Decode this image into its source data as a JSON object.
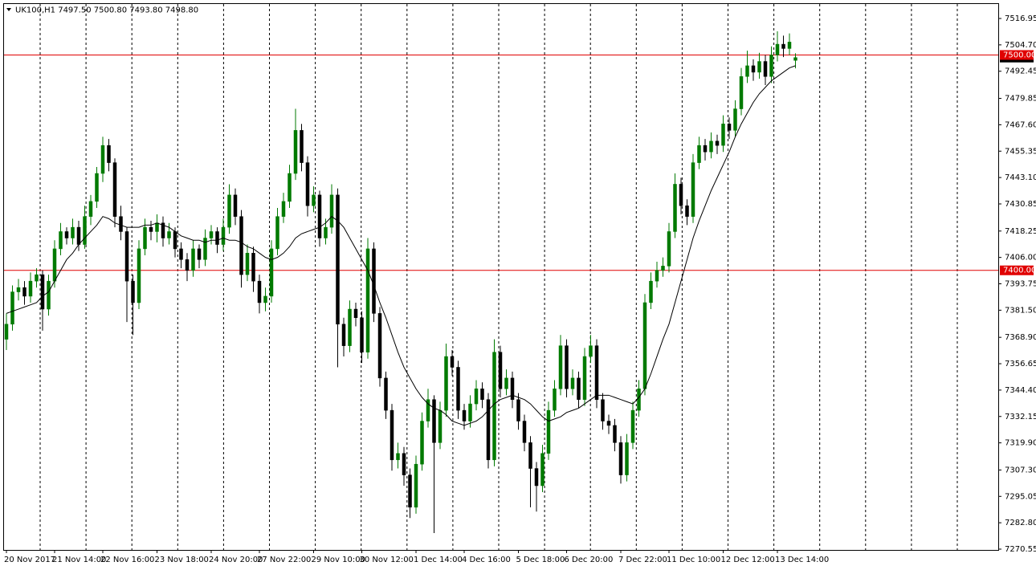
{
  "chart_data": {
    "type": "candlestick",
    "title": "UK100,H1  7497.50 7500.80 7493.80 7498.80",
    "categories": [
      "20 Nov 2017",
      null,
      null,
      null,
      null,
      null,
      null,
      null,
      "21 Nov 14:00",
      null,
      null,
      null,
      null,
      null,
      null,
      null,
      "22 Nov 16:00",
      null,
      null,
      null,
      null,
      null,
      null,
      null,
      null,
      "23 Nov 18:00",
      null,
      null,
      null,
      null,
      null,
      null,
      null,
      null,
      "24 Nov 20:00",
      null,
      null,
      null,
      null,
      null,
      null,
      null,
      "27 Nov 22:00",
      null,
      null,
      null,
      null,
      null,
      null,
      null,
      null,
      "29 Nov 10:00",
      null,
      null,
      null,
      null,
      null,
      null,
      null,
      "30 Nov 12:00",
      null,
      null,
      null,
      null,
      null,
      null,
      null,
      null,
      "1 Dec 14:00",
      null,
      null,
      null,
      null,
      null,
      null,
      null,
      "4 Dec 16:00",
      null,
      null,
      null,
      null,
      null,
      null,
      null,
      null,
      "5 Dec 18:00",
      null,
      null,
      null,
      null,
      null,
      null,
      null,
      "6 Dec 20:00",
      null,
      null,
      null,
      null,
      null,
      null,
      null,
      null,
      "7 Dec 22:00",
      null,
      null,
      null,
      null,
      null,
      null,
      null,
      "11 Dec 10:00",
      null,
      null,
      null,
      null,
      null,
      null,
      null,
      null,
      "12 Dec 12:00",
      null,
      null,
      null,
      null,
      null,
      null,
      null,
      null,
      "13 Dec 14:00",
      null,
      null,
      null
    ],
    "ohlc": [
      [
        7368,
        7380,
        7363,
        7375
      ],
      [
        7375,
        7393,
        7372,
        7390
      ],
      [
        7390,
        7396,
        7386,
        7392
      ],
      [
        7392,
        7395,
        7384,
        7388
      ],
      [
        7388,
        7399,
        7385,
        7395
      ],
      [
        7395,
        7401,
        7392,
        7398
      ],
      [
        7398,
        7400,
        7372,
        7382
      ],
      [
        7382,
        7398,
        7379,
        7395
      ],
      [
        7395,
        7414,
        7392,
        7410
      ],
      [
        7410,
        7422,
        7407,
        7418
      ],
      [
        7418,
        7420,
        7412,
        7415
      ],
      [
        7415,
        7424,
        7412,
        7420
      ],
      [
        7420,
        7423,
        7409,
        7412
      ],
      [
        7412,
        7430,
        7410,
        7425
      ],
      [
        7425,
        7435,
        7421,
        7432
      ],
      [
        7432,
        7448,
        7429,
        7445
      ],
      [
        7445,
        7462,
        7441,
        7458
      ],
      [
        7458,
        7461,
        7446,
        7450
      ],
      [
        7450,
        7452,
        7420,
        7425
      ],
      [
        7425,
        7430,
        7414,
        7418
      ],
      [
        7418,
        7420,
        7376,
        7395
      ],
      [
        7395,
        7398,
        7370,
        7385
      ],
      [
        7385,
        7414,
        7382,
        7410
      ],
      [
        7410,
        7424,
        7407,
        7420
      ],
      [
        7420,
        7423,
        7414,
        7418
      ],
      [
        7418,
        7426,
        7413,
        7422
      ],
      [
        7422,
        7425,
        7411,
        7415
      ],
      [
        7415,
        7422,
        7412,
        7418
      ],
      [
        7418,
        7420,
        7406,
        7410
      ],
      [
        7410,
        7413,
        7401,
        7405
      ],
      [
        7405,
        7408,
        7395,
        7400
      ],
      [
        7400,
        7414,
        7397,
        7410
      ],
      [
        7410,
        7412,
        7401,
        7405
      ],
      [
        7405,
        7419,
        7402,
        7415
      ],
      [
        7415,
        7421,
        7412,
        7418
      ],
      [
        7418,
        7420,
        7408,
        7412
      ],
      [
        7412,
        7424,
        7409,
        7420
      ],
      [
        7420,
        7440,
        7417,
        7435
      ],
      [
        7435,
        7438,
        7421,
        7425
      ],
      [
        7425,
        7428,
        7392,
        7398
      ],
      [
        7398,
        7412,
        7395,
        7408
      ],
      [
        7408,
        7411,
        7390,
        7395
      ],
      [
        7395,
        7398,
        7380,
        7385
      ],
      [
        7385,
        7392,
        7381,
        7388
      ],
      [
        7388,
        7414,
        7385,
        7410
      ],
      [
        7410,
        7429,
        7407,
        7425
      ],
      [
        7425,
        7436,
        7422,
        7432
      ],
      [
        7432,
        7449,
        7429,
        7445
      ],
      [
        7445,
        7475,
        7442,
        7465
      ],
      [
        7465,
        7468,
        7446,
        7450
      ],
      [
        7450,
        7453,
        7425,
        7430
      ],
      [
        7430,
        7439,
        7427,
        7435
      ],
      [
        7435,
        7437,
        7411,
        7415
      ],
      [
        7415,
        7424,
        7412,
        7420
      ],
      [
        7420,
        7440,
        7417,
        7435
      ],
      [
        7435,
        7438,
        7355,
        7375
      ],
      [
        7375,
        7378,
        7360,
        7365
      ],
      [
        7365,
        7386,
        7362,
        7382
      ],
      [
        7382,
        7385,
        7374,
        7378
      ],
      [
        7378,
        7381,
        7357,
        7362
      ],
      [
        7362,
        7415,
        7359,
        7410
      ],
      [
        7410,
        7413,
        7376,
        7380
      ],
      [
        7380,
        7383,
        7346,
        7350
      ],
      [
        7350,
        7353,
        7331,
        7335
      ],
      [
        7335,
        7338,
        7307,
        7312
      ],
      [
        7312,
        7320,
        7308,
        7315
      ],
      [
        7315,
        7318,
        7300,
        7305
      ],
      [
        7305,
        7308,
        7285,
        7290
      ],
      [
        7290,
        7314,
        7287,
        7310
      ],
      [
        7310,
        7334,
        7307,
        7330
      ],
      [
        7330,
        7345,
        7327,
        7340
      ],
      [
        7340,
        7342,
        7278,
        7320
      ],
      [
        7320,
        7339,
        7317,
        7335
      ],
      [
        7335,
        7366,
        7332,
        7360
      ],
      [
        7360,
        7363,
        7351,
        7355
      ],
      [
        7355,
        7358,
        7331,
        7335
      ],
      [
        7335,
        7338,
        7326,
        7330
      ],
      [
        7330,
        7342,
        7327,
        7338
      ],
      [
        7338,
        7349,
        7335,
        7345
      ],
      [
        7345,
        7348,
        7336,
        7340
      ],
      [
        7340,
        7343,
        7308,
        7312
      ],
      [
        7312,
        7368,
        7309,
        7362
      ],
      [
        7362,
        7365,
        7341,
        7345
      ],
      [
        7345,
        7354,
        7342,
        7350
      ],
      [
        7350,
        7353,
        7336,
        7340
      ],
      [
        7340,
        7343,
        7326,
        7330
      ],
      [
        7330,
        7333,
        7316,
        7320
      ],
      [
        7320,
        7323,
        7290,
        7308
      ],
      [
        7308,
        7311,
        7288,
        7300
      ],
      [
        7300,
        7319,
        7297,
        7315
      ],
      [
        7315,
        7339,
        7312,
        7335
      ],
      [
        7335,
        7349,
        7332,
        7345
      ],
      [
        7345,
        7370,
        7342,
        7365
      ],
      [
        7365,
        7368,
        7341,
        7345
      ],
      [
        7345,
        7354,
        7342,
        7350
      ],
      [
        7350,
        7353,
        7336,
        7340
      ],
      [
        7340,
        7364,
        7337,
        7360
      ],
      [
        7360,
        7370,
        7357,
        7365
      ],
      [
        7365,
        7368,
        7336,
        7340
      ],
      [
        7340,
        7343,
        7326,
        7330
      ],
      [
        7330,
        7333,
        7324,
        7328
      ],
      [
        7328,
        7331,
        7316,
        7320
      ],
      [
        7320,
        7323,
        7301,
        7305
      ],
      [
        7305,
        7324,
        7302,
        7320
      ],
      [
        7320,
        7339,
        7317,
        7335
      ],
      [
        7335,
        7349,
        7332,
        7345
      ],
      [
        7345,
        7389,
        7342,
        7385
      ],
      [
        7385,
        7399,
        7382,
        7395
      ],
      [
        7395,
        7404,
        7392,
        7400
      ],
      [
        7400,
        7406,
        7397,
        7402
      ],
      [
        7402,
        7422,
        7399,
        7418
      ],
      [
        7418,
        7445,
        7415,
        7440
      ],
      [
        7440,
        7443,
        7426,
        7430
      ],
      [
        7430,
        7433,
        7421,
        7425
      ],
      [
        7425,
        7454,
        7422,
        7450
      ],
      [
        7450,
        7462,
        7447,
        7458
      ],
      [
        7458,
        7461,
        7451,
        7455
      ],
      [
        7455,
        7464,
        7452,
        7460
      ],
      [
        7460,
        7463,
        7454,
        7458
      ],
      [
        7458,
        7472,
        7455,
        7468
      ],
      [
        7468,
        7471,
        7461,
        7465
      ],
      [
        7465,
        7479,
        7462,
        7475
      ],
      [
        7475,
        7494,
        7472,
        7490
      ],
      [
        7490,
        7502,
        7487,
        7495
      ],
      [
        7495,
        7498,
        7488,
        7492
      ],
      [
        7492,
        7501,
        7489,
        7497
      ],
      [
        7497,
        7500,
        7486,
        7490
      ],
      [
        7490,
        7504,
        7487,
        7500
      ],
      [
        7500,
        7511,
        7497,
        7505
      ],
      [
        7505,
        7509,
        7499,
        7503
      ],
      [
        7503,
        7510,
        7500,
        7506
      ],
      [
        7497.5,
        7500.8,
        7493.8,
        7498.8
      ]
    ],
    "ma": [
      7380,
      7381,
      7382,
      7383,
      7384,
      7385,
      7388,
      7390,
      7395,
      7400,
      7405,
      7408,
      7412,
      7415,
      7418,
      7421,
      7425,
      7424,
      7422,
      7421,
      7420,
      7420,
      7420,
      7421,
      7421,
      7422,
      7421,
      7420,
      7418,
      7416,
      7415,
      7414,
      7414,
      7413,
      7414,
      7414,
      7415,
      7414,
      7414,
      7413,
      7411,
      7410,
      7408,
      7406,
      7405,
      7406,
      7408,
      7411,
      7415,
      7417,
      7418,
      7419,
      7420,
      7422,
      7425,
      7423,
      7420,
      7415,
      7410,
      7405,
      7400,
      7393,
      7385,
      7378,
      7370,
      7362,
      7355,
      7350,
      7345,
      7341,
      7338,
      7336,
      7335,
      7333,
      7330,
      7329,
      7328,
      7329,
      7330,
      7332,
      7335,
      7338,
      7340,
      7341,
      7342,
      7341,
      7340,
      7338,
      7335,
      7332,
      7330,
      7331,
      7332,
      7334,
      7335,
      7336,
      7338,
      7340,
      7342,
      7342,
      7342,
      7341,
      7340,
      7339,
      7338,
      7341,
      7345,
      7352,
      7360,
      7368,
      7375,
      7385,
      7395,
      7405,
      7415,
      7423,
      7430,
      7437,
      7443,
      7449,
      7455,
      7462,
      7468,
      7473,
      7478,
      7482,
      7485,
      7488,
      7490,
      7492,
      7494,
      7495
    ],
    "up_color": "#007a00",
    "down_color": "#000000",
    "ma_color": "#000000",
    "hline_color": "#e00000",
    "hlines": [
      {
        "value": 7500,
        "label": "7500.00"
      },
      {
        "value": 7400,
        "label": "7400.00"
      }
    ],
    "last_price": {
      "value": 7498.8,
      "label": "7498.80"
    },
    "ylim": [
      7270.18,
      7524.04
    ],
    "yticks": [
      7516.95,
      {
        "value": 7504.7,
        "label": "7504.70"
      },
      7492.45,
      7479.85,
      {
        "value": 7467.6,
        "label": "7467.60"
      },
      7455.35,
      {
        "value": 7443.1,
        "label": "7443.10"
      },
      7430.85,
      7418.25,
      {
        "value": 7406,
        "label": "7406.00"
      },
      7393.75,
      {
        "value": 7381.5,
        "label": "7381.50"
      },
      {
        "value": 7368.9,
        "label": "7368.90"
      },
      7356.65,
      {
        "value": 7344.4,
        "label": "7344.40"
      },
      7332.15,
      {
        "value": 7319.9,
        "label": "7319.90"
      },
      {
        "value": 7307.3,
        "label": "7307.30"
      },
      7295.05,
      {
        "value": 7282.8,
        "label": "7282.80"
      },
      7270.55
    ],
    "grid": true
  }
}
